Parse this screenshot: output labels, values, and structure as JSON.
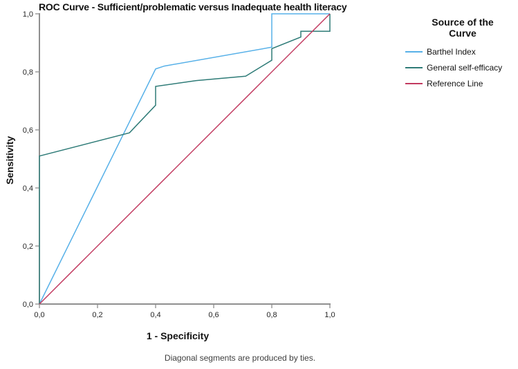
{
  "chart": {
    "title": "ROC Curve - Sufficient/problematic versus Inadequate health literacy",
    "xlabel": "1 - Specificity",
    "ylabel": "Sensitivity",
    "footnote": "Diagonal segments are produced by ties."
  },
  "legend": {
    "title": "Source of the Curve"
  },
  "colors": {
    "axis": "#6a6a6a",
    "tick_text": "#262626",
    "barthel_index": "#56B0E8",
    "general_self_efficacy": "#2E7B77",
    "reference_line": "#C23A60"
  },
  "chart_data": {
    "type": "line",
    "title": "ROC Curve - Sufficient/problematic versus Inadequate health literacy",
    "xlabel": "1 - Specificity",
    "ylabel": "Sensitivity",
    "xlim": [
      0,
      1
    ],
    "ylim": [
      0,
      1
    ],
    "grid": false,
    "legend_position": "right",
    "x_tick_labels": [
      "0,0",
      "0,2",
      "0,4",
      "0,6",
      "0,8",
      "1,0"
    ],
    "y_tick_labels": [
      "0,0",
      "0,2",
      "0,4",
      "0,6",
      "0,8",
      "1,0"
    ],
    "series": [
      {
        "name": "Barthel Index",
        "color": "#56B0E8",
        "points": [
          [
            0,
            0
          ],
          [
            0.4,
            0.81
          ],
          [
            0.43,
            0.82
          ],
          [
            0.8,
            0.885
          ],
          [
            0.8,
            1.0
          ],
          [
            1.0,
            1.0
          ]
        ]
      },
      {
        "name": "General self-efficacy",
        "color": "#2E7B77",
        "points": [
          [
            0,
            0
          ],
          [
            0,
            0.51
          ],
          [
            0.31,
            0.59
          ],
          [
            0.4,
            0.685
          ],
          [
            0.4,
            0.75
          ],
          [
            0.54,
            0.77
          ],
          [
            0.71,
            0.785
          ],
          [
            0.8,
            0.84
          ],
          [
            0.8,
            0.88
          ],
          [
            0.9,
            0.92
          ],
          [
            0.9,
            0.94
          ],
          [
            1.0,
            0.94
          ],
          [
            1.0,
            1.0
          ]
        ]
      },
      {
        "name": "Reference Line",
        "color": "#C23A60",
        "points": [
          [
            0,
            0
          ],
          [
            1,
            1
          ]
        ]
      }
    ]
  }
}
